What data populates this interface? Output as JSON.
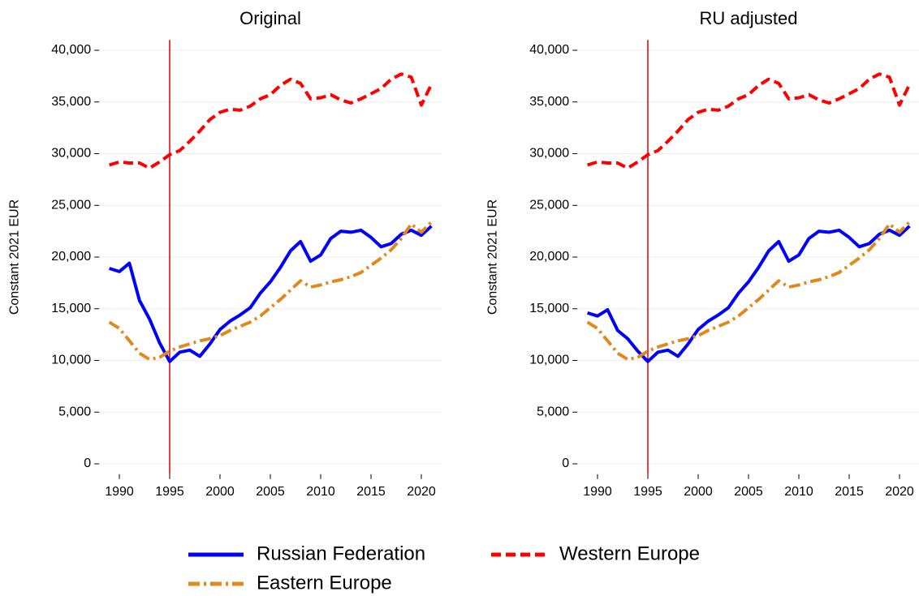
{
  "chart_data": [
    {
      "type": "line",
      "title": "Original",
      "y_label": "Constant 2021 EUR",
      "x": [
        1989,
        1990,
        1991,
        1992,
        1993,
        1994,
        1995,
        1996,
        1997,
        1998,
        1999,
        2000,
        2001,
        2002,
        2003,
        2004,
        2005,
        2006,
        2007,
        2008,
        2009,
        2010,
        2011,
        2012,
        2013,
        2014,
        2015,
        2016,
        2017,
        2018,
        2019,
        2020,
        2021
      ],
      "series": [
        {
          "name": "Russian Federation",
          "color": "#0000ff",
          "style": "solid",
          "values": [
            18900,
            18600,
            19400,
            15800,
            14000,
            11700,
            9900,
            10800,
            11000,
            10400,
            11600,
            13000,
            13800,
            14400,
            15100,
            16500,
            17600,
            19000,
            20600,
            21500,
            19600,
            20200,
            21800,
            22500,
            22400,
            22600,
            21900,
            21000,
            21300,
            22200,
            22600,
            22100,
            23000
          ]
        },
        {
          "name": "Western Europe",
          "color": "#ff0000",
          "style": "dash",
          "values": [
            28900,
            29200,
            29100,
            29100,
            28600,
            29200,
            29900,
            30300,
            31200,
            32200,
            33300,
            34000,
            34300,
            34200,
            34600,
            35300,
            35700,
            36600,
            37200,
            36800,
            35300,
            35400,
            35700,
            35200,
            34900,
            35300,
            35800,
            36300,
            37200,
            37700,
            37400,
            34700,
            36700
          ]
        },
        {
          "name": "Eastern Europe",
          "color": "#e08a1e",
          "style": "dashdot",
          "values": [
            13700,
            13100,
            11900,
            10700,
            10100,
            10300,
            10900,
            11300,
            11600,
            11900,
            12100,
            12400,
            12900,
            13300,
            13700,
            14300,
            15100,
            15900,
            16800,
            17700,
            17100,
            17300,
            17600,
            17800,
            18100,
            18500,
            19200,
            19900,
            20700,
            21800,
            23200,
            22400,
            23400
          ]
        }
      ],
      "vline": 1995,
      "vline_color": "#e00000",
      "xlim": [
        1988,
        2022
      ],
      "xticks": [
        1990,
        1995,
        2000,
        2005,
        2010,
        2015,
        2020
      ],
      "ylim": [
        -1000,
        41000
      ],
      "yticks": [
        0,
        {
          "value": 5000,
          "label": "5,000"
        },
        {
          "value": 10000,
          "label": "10,000"
        },
        {
          "value": 15000,
          "label": "15,000"
        },
        {
          "value": 20000,
          "label": "20,000"
        },
        {
          "value": 25000,
          "label": "25,000"
        },
        {
          "value": 30000,
          "label": "30,000"
        },
        {
          "value": 35000,
          "label": "35,000"
        },
        {
          "value": 40000,
          "label": "40,000"
        }
      ],
      "grid": true,
      "legend": "bottom"
    },
    {
      "type": "line",
      "title": "RU adjusted",
      "y_label": "Constant 2021 EUR",
      "x": [
        1989,
        1990,
        1991,
        1992,
        1993,
        1994,
        1995,
        1996,
        1997,
        1998,
        1999,
        2000,
        2001,
        2002,
        2003,
        2004,
        2005,
        2006,
        2007,
        2008,
        2009,
        2010,
        2011,
        2012,
        2013,
        2014,
        2015,
        2016,
        2017,
        2018,
        2019,
        2020,
        2021
      ],
      "series": [
        {
          "name": "Russian Federation",
          "color": "#0000ff",
          "style": "solid",
          "values": [
            14600,
            14300,
            14900,
            12900,
            12100,
            10900,
            9900,
            10800,
            11000,
            10400,
            11600,
            13000,
            13800,
            14400,
            15100,
            16500,
            17600,
            19000,
            20600,
            21500,
            19600,
            20200,
            21800,
            22500,
            22400,
            22600,
            21900,
            21000,
            21300,
            22200,
            22600,
            22100,
            23000
          ]
        },
        {
          "name": "Western Europe",
          "color": "#ff0000",
          "style": "dash",
          "values": [
            28900,
            29200,
            29100,
            29100,
            28600,
            29200,
            29900,
            30300,
            31200,
            32200,
            33300,
            34000,
            34300,
            34200,
            34600,
            35300,
            35700,
            36600,
            37200,
            36800,
            35300,
            35400,
            35700,
            35200,
            34900,
            35300,
            35800,
            36300,
            37200,
            37700,
            37400,
            34700,
            36700
          ]
        },
        {
          "name": "Eastern Europe",
          "color": "#e08a1e",
          "style": "dashdot",
          "values": [
            13700,
            13100,
            11900,
            10700,
            10100,
            10300,
            10900,
            11300,
            11600,
            11900,
            12100,
            12400,
            12900,
            13300,
            13700,
            14300,
            15100,
            15900,
            16800,
            17700,
            17100,
            17300,
            17600,
            17800,
            18100,
            18500,
            19200,
            19900,
            20700,
            21800,
            23200,
            22400,
            23400
          ]
        }
      ],
      "vline": 1995,
      "vline_color": "#e00000",
      "xlim": [
        1988,
        2022
      ],
      "xticks": [
        1990,
        1995,
        2000,
        2005,
        2010,
        2015,
        2020
      ],
      "ylim": [
        -1000,
        41000
      ],
      "yticks": [
        0,
        {
          "value": 5000,
          "label": "5,000"
        },
        {
          "value": 10000,
          "label": "10,000"
        },
        {
          "value": 15000,
          "label": "15,000"
        },
        {
          "value": 20000,
          "label": "20,000"
        },
        {
          "value": 25000,
          "label": "25,000"
        },
        {
          "value": 30000,
          "label": "30,000"
        },
        {
          "value": 35000,
          "label": "35,000"
        },
        {
          "value": 40000,
          "label": "40,000"
        }
      ],
      "grid": true,
      "legend": "bottom"
    }
  ]
}
